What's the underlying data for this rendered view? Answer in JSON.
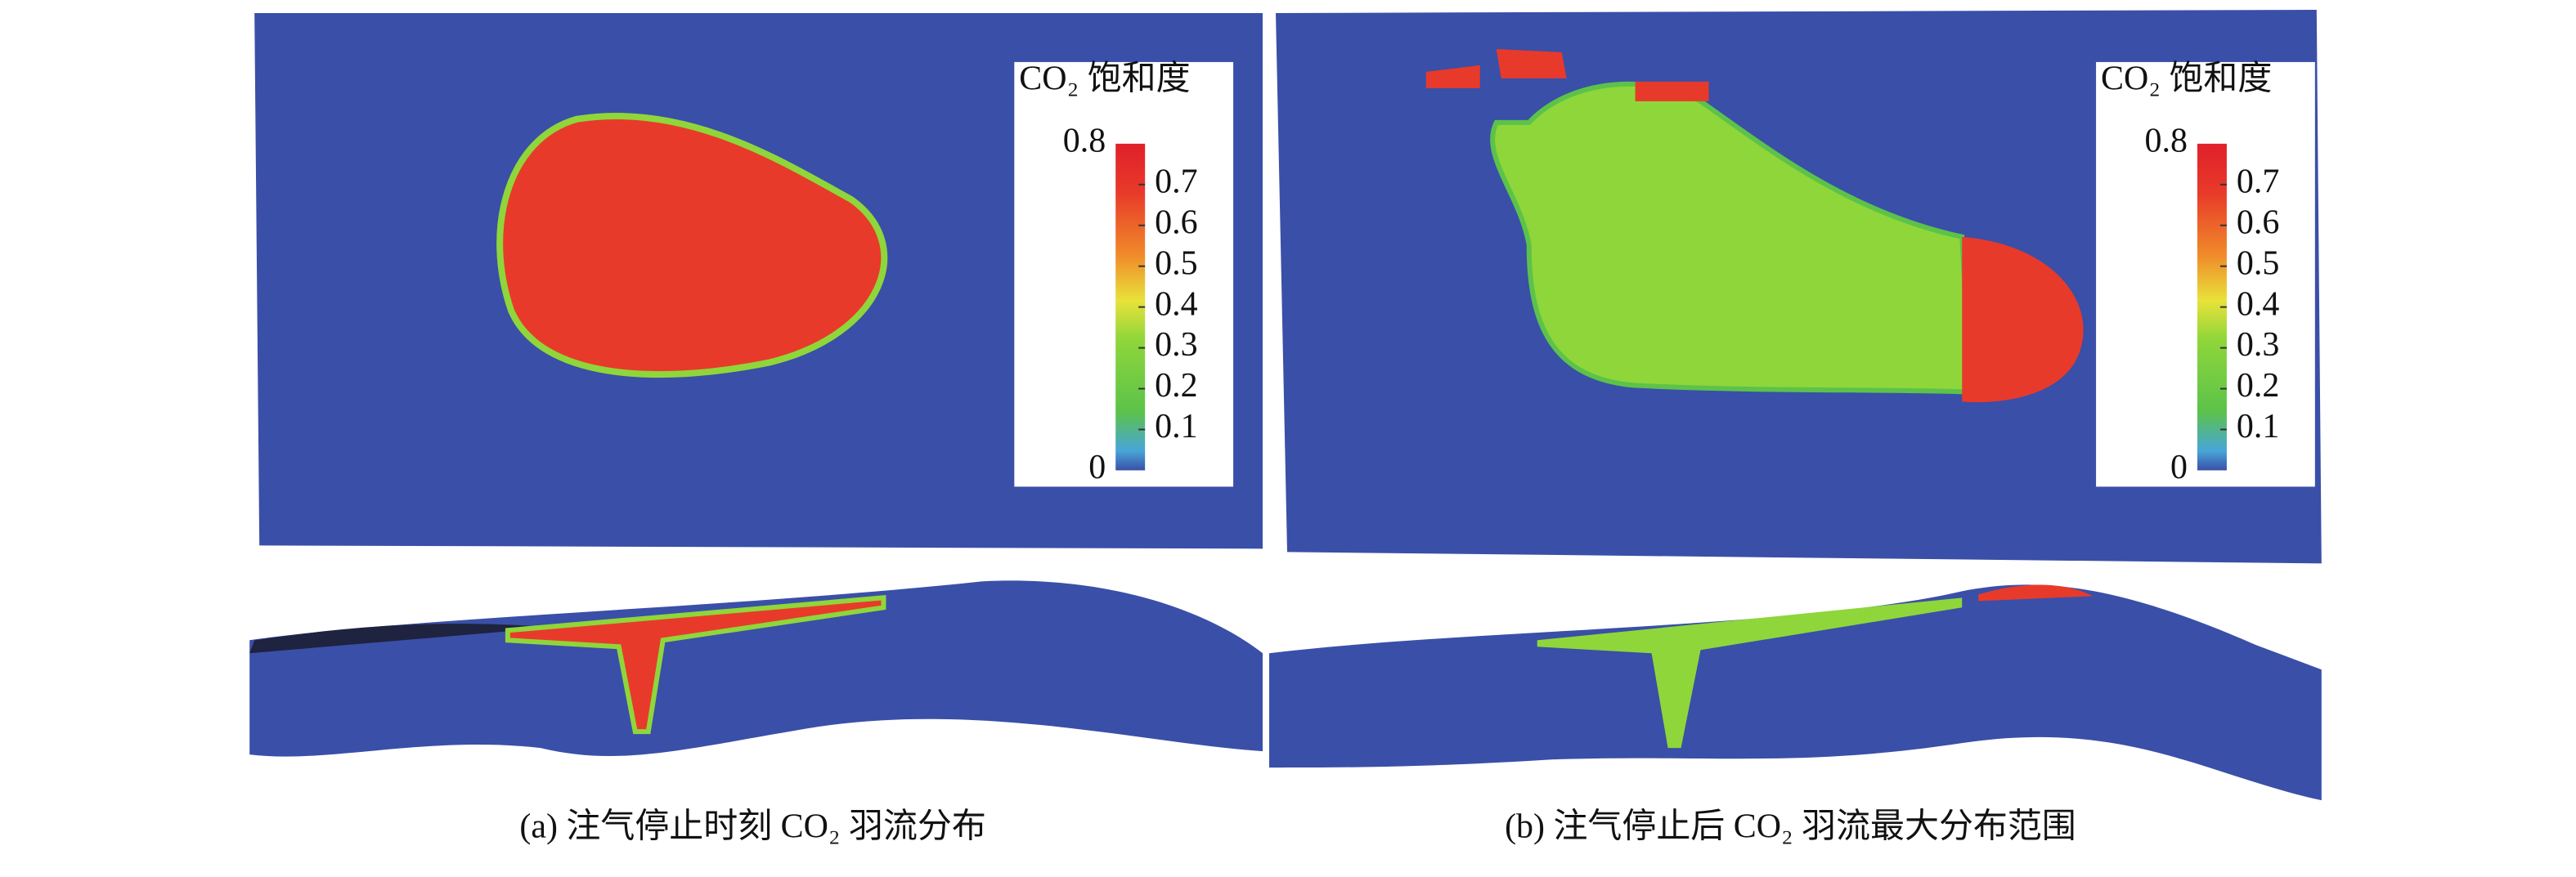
{
  "panels": [
    {
      "caption": "(a) 注气停止时刻 CO₂ 羽流分布",
      "colorbar": {
        "title": "CO₂ 饱和度",
        "lim": [
          0,
          0.8
        ],
        "ticks": [
          0.1,
          0.2,
          0.3,
          0.4,
          0.5,
          0.6,
          0.7
        ]
      }
    },
    {
      "caption": "(b) 注气停止后 CO₂ 羽流最大分布范围",
      "colorbar": {
        "title": "CO₂ 饱和度",
        "lim": [
          0,
          0.8
        ],
        "ticks": [
          0.1,
          0.2,
          0.3,
          0.4,
          0.5,
          0.6,
          0.7
        ]
      }
    }
  ]
}
